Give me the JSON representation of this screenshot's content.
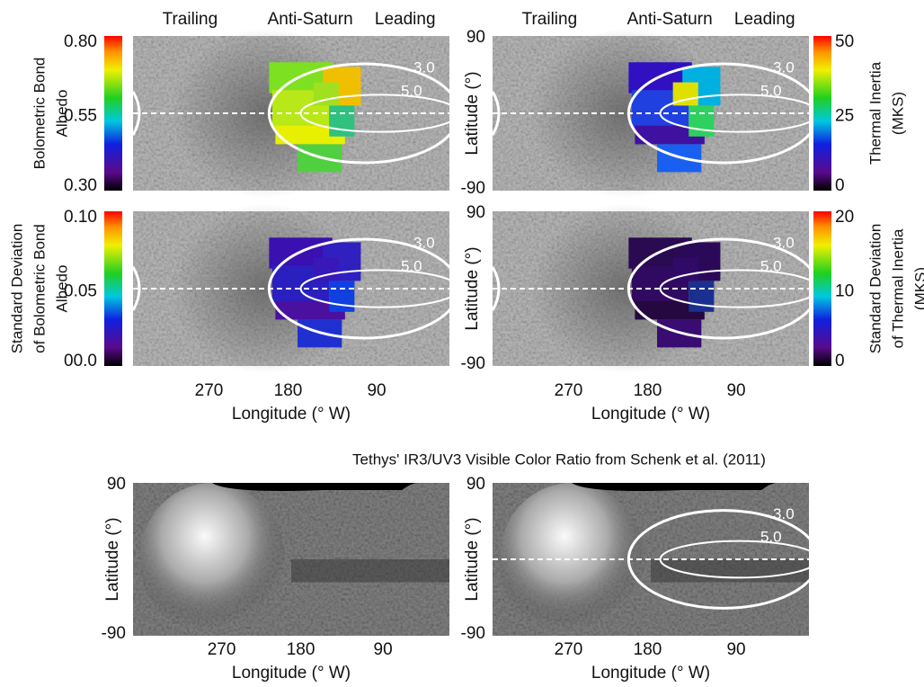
{
  "panels": [
    {
      "header": [
        "Trailing",
        "Anti-Saturn",
        "Leading"
      ],
      "colorbar": {
        "label_lines": [
          "Bolometric Bond",
          "Albedo"
        ],
        "ticks": [
          "0.80",
          "0.55",
          "0.30"
        ]
      },
      "contours": [
        "3.0",
        "5.0"
      ]
    },
    {
      "header": [
        "Trailing",
        "Anti-Saturn",
        "Leading"
      ],
      "latitude": {
        "ticks": [
          "90",
          "-90"
        ],
        "label": "Latitude (°)"
      },
      "colorbar": {
        "label_lines": [
          "Thermal Inertia",
          "(MKS)"
        ],
        "ticks": [
          "50",
          "25",
          "0"
        ]
      },
      "contours": [
        "3.0",
        "5.0"
      ]
    },
    {
      "colorbar": {
        "label_lines": [
          "Standard Deviation",
          "of Bolometric Bond",
          "Albedo"
        ],
        "ticks": [
          "0.10",
          "0.05",
          "00.0"
        ]
      },
      "contours": [
        "3.0",
        "5.0"
      ],
      "longitude": {
        "ticks": [
          "270",
          "180",
          "90"
        ],
        "label": "Longitude (° W)"
      }
    },
    {
      "latitude": {
        "ticks": [
          "90",
          "-90"
        ],
        "label": "Latitude (°)"
      },
      "colorbar": {
        "label_lines": [
          "Standard Deviation",
          "of Thermal Inertia",
          "(MKS)"
        ],
        "ticks": [
          "20",
          "10",
          "0"
        ]
      },
      "contours": [
        "3.0",
        "5.0"
      ],
      "longitude": {
        "ticks": [
          "270",
          "180",
          "90"
        ],
        "label": "Longitude (° W)"
      }
    }
  ],
  "bottom": {
    "title": "Tethys' IR3/UV3 Visible  Color Ratio from Schenk et al. (2011)",
    "panels": [
      {
        "latitude": {
          "ticks": [
            "90",
            "-90"
          ],
          "label": "Latitude (°)"
        },
        "longitude": {
          "ticks": [
            "270",
            "180",
            "90"
          ],
          "label": "Longitude (° W)"
        }
      },
      {
        "latitude": {
          "ticks": [
            "90",
            "-90"
          ],
          "label": "Latitude (°)"
        },
        "contours": [
          "3.0",
          "5.0"
        ],
        "longitude": {
          "ticks": [
            "270",
            "180",
            "90"
          ],
          "label": "Longitude (° W)"
        }
      }
    ]
  }
}
